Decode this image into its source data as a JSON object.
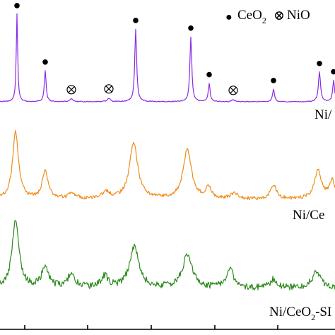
{
  "legend": {
    "ceo2_marker": "●",
    "ceo2_text": "CeO",
    "ceo2_sub": "2",
    "nio_marker": "⊗",
    "nio_text": "NiO"
  },
  "chart_data": {
    "type": "line",
    "title": "",
    "xlabel": "",
    "ylabel": "",
    "xlim": [
      0,
      474
    ],
    "colors": {
      "top": "#8a2be2",
      "middle": "#f08c1a",
      "bottom": "#2a8a1a",
      "axis": "#000000",
      "marker": "#000000"
    },
    "series": [
      {
        "key": "top",
        "name": "Ni/",
        "name_sub": "",
        "name_tail": "",
        "baseline": 144,
        "noise": 0.6,
        "peaks": [
          {
            "x": 24,
            "y": 124,
            "w": 1.2
          },
          {
            "x": 64,
            "y": 44,
            "w": 1.5
          },
          {
            "x": 101,
            "y": 4,
            "w": 2.5
          },
          {
            "x": 154,
            "y": 5,
            "w": 2.5
          },
          {
            "x": 192,
            "y": 103,
            "w": 1.6
          },
          {
            "x": 270,
            "y": 92,
            "w": 1.6
          },
          {
            "x": 296,
            "y": 26,
            "w": 1.5
          },
          {
            "x": 330,
            "y": 3,
            "w": 2.5
          },
          {
            "x": 387,
            "y": 18,
            "w": 1.6
          },
          {
            "x": 452,
            "y": 42,
            "w": 1.8
          },
          {
            "x": 472,
            "y": 30,
            "w": 1.6
          }
        ],
        "ceo2_markers": [
          24,
          64,
          192,
          270,
          296,
          387,
          452,
          472
        ],
        "nio_markers": [
          101,
          154,
          330
        ]
      },
      {
        "key": "middle",
        "name": "Ni/Ce",
        "name_sub": "",
        "name_tail": "",
        "baseline": 282,
        "noise": 2.4,
        "peaks": [
          {
            "x": 22,
            "y": 95,
            "w": 5
          },
          {
            "x": 64,
            "y": 40,
            "w": 5
          },
          {
            "x": 102,
            "y": 8,
            "w": 6
          },
          {
            "x": 150,
            "y": 10,
            "w": 6
          },
          {
            "x": 189,
            "y": 80,
            "w": 7
          },
          {
            "x": 265,
            "y": 70,
            "w": 7
          },
          {
            "x": 295,
            "y": 15,
            "w": 5
          },
          {
            "x": 332,
            "y": 8,
            "w": 6
          },
          {
            "x": 387,
            "y": 20,
            "w": 5
          },
          {
            "x": 450,
            "y": 40,
            "w": 6
          },
          {
            "x": 470,
            "y": 25,
            "w": 5
          }
        ]
      },
      {
        "key": "bottom",
        "name": "Ni/CeO",
        "name_sub": "2",
        "name_tail": "-SI",
        "baseline": 408,
        "noise": 4.5,
        "peaks": [
          {
            "x": 22,
            "y": 95,
            "w": 6
          },
          {
            "x": 64,
            "y": 30,
            "w": 6
          },
          {
            "x": 101,
            "y": 20,
            "w": 6
          },
          {
            "x": 148,
            "y": 16,
            "w": 6
          },
          {
            "x": 190,
            "y": 58,
            "w": 8
          },
          {
            "x": 265,
            "y": 48,
            "w": 8
          },
          {
            "x": 325,
            "y": 28,
            "w": 6
          },
          {
            "x": 387,
            "y": 12,
            "w": 6
          },
          {
            "x": 448,
            "y": 22,
            "w": 8
          }
        ]
      }
    ],
    "x_ticks": [
      35,
      124,
      214,
      304,
      393
    ]
  }
}
